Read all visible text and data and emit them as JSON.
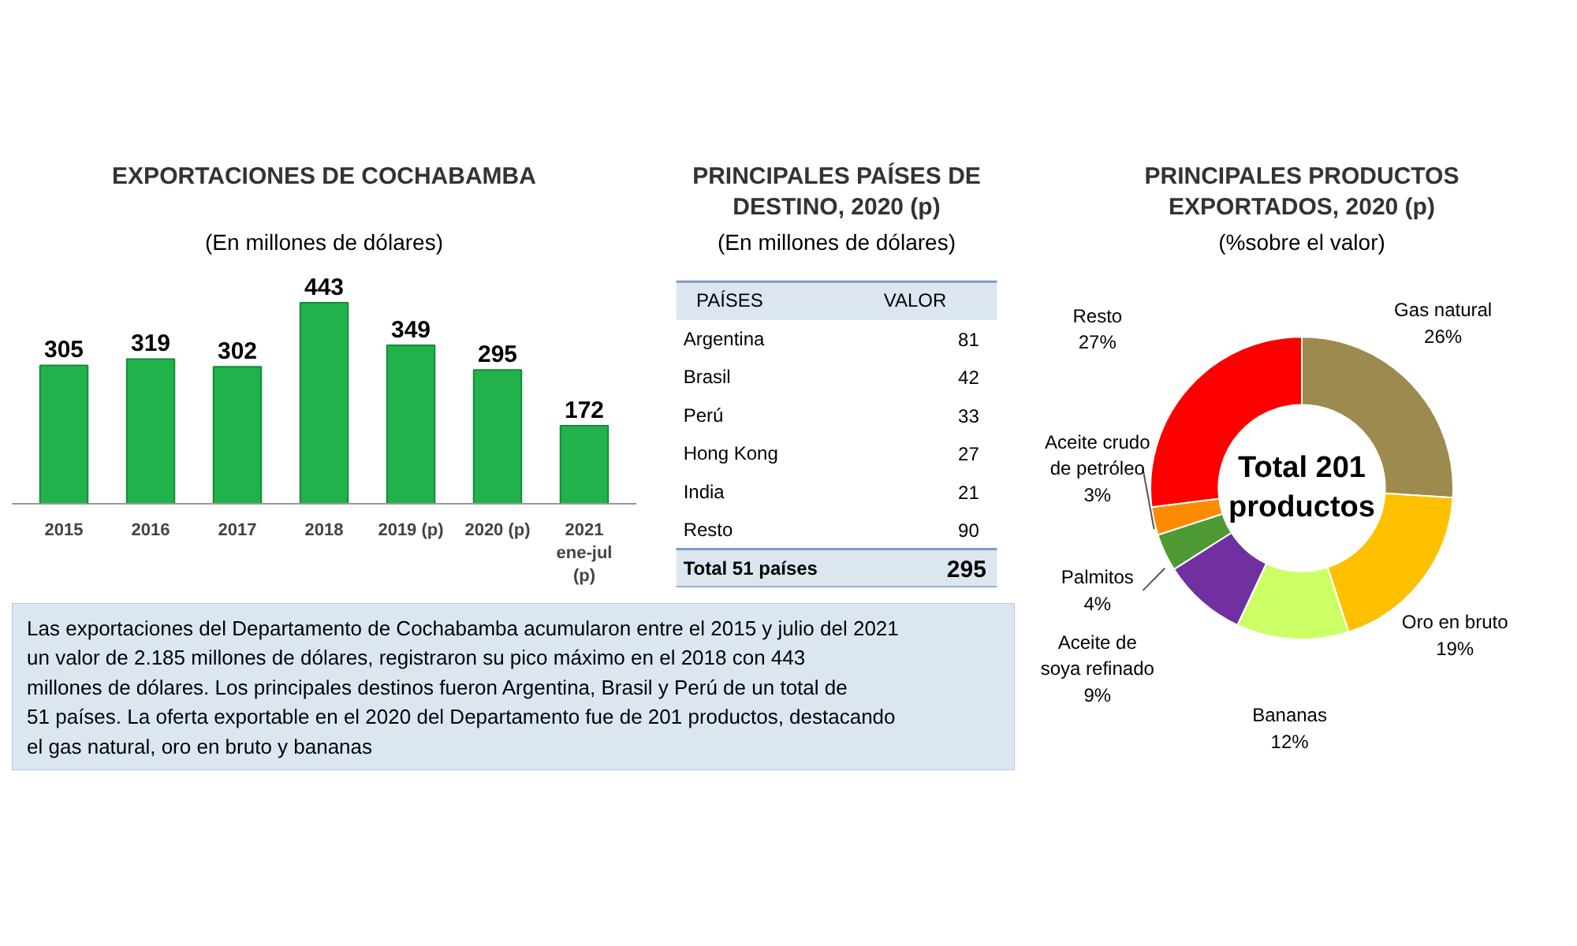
{
  "chart_data": [
    {
      "type": "bar",
      "title": "EXPORTACIONES DE COCHABAMBA",
      "subtitle": "(En millones de dólares)",
      "categories": [
        "2015",
        "2016",
        "2017",
        "2018",
        "2019 (p)",
        "2020 (p)",
        "2021 ene-jul (p)"
      ],
      "values": [
        305,
        319,
        302,
        443,
        349,
        295,
        172
      ],
      "color": "#21b24b",
      "data_labels": true,
      "grid": false
    },
    {
      "type": "other",
      "title": "PRINCIPALES PAÍSES DE DESTINO, 2020 (p)",
      "subtitle": "(En millones de dólares)",
      "categories": [
        "Argentina",
        "Brasil",
        "Perú",
        "Hong Kong",
        "India",
        "Resto"
      ],
      "values": [
        81,
        42,
        33,
        27,
        21,
        90
      ],
      "data_labels": true,
      "annotations": [
        "PAÍSES",
        "VALOR",
        "Total 51 países",
        "295"
      ]
    },
    {
      "type": "donut",
      "title": "PRINCIPALES PRODUCTOS EXPORTADOS, 2020 (p)",
      "subtitle": "(%sobre el valor)",
      "categories": [
        "Gas natural",
        "Oro en bruto",
        "Bananas",
        "Aceite de soya refinado",
        "Palmitos",
        "Aceite crudo de petróleo",
        "Resto"
      ],
      "values": [
        26,
        19,
        12,
        9,
        4,
        3,
        27
      ],
      "colors": [
        "#9c8a4e",
        "#ffc000",
        "#ccff66",
        "#7030a0",
        "#4e9a35",
        "#ff8c00",
        "#ff0000"
      ],
      "value_labels": [
        "26%",
        "19%",
        "12%",
        "9%",
        "4%",
        "3%",
        "27%"
      ],
      "annotations": [
        "Total 201 productos"
      ]
    },
    {
      "type": "other",
      "annotations": [
        "Las exportaciones del Departamento de Cochabamba acumularon entre el 2015 y julio del 2021 un valor de 2.185 millones de dólares, registraron su pico máximo en el 2018 con 443 millones de dólares. Los principales destinos fueron Argentina, Brasil y Perú de un total de 51 países. La oferta exportable en el 2020 del Departamento fue de 201 productos, destacando el gas natural, oro en bruto y bananas"
      ]
    }
  ]
}
